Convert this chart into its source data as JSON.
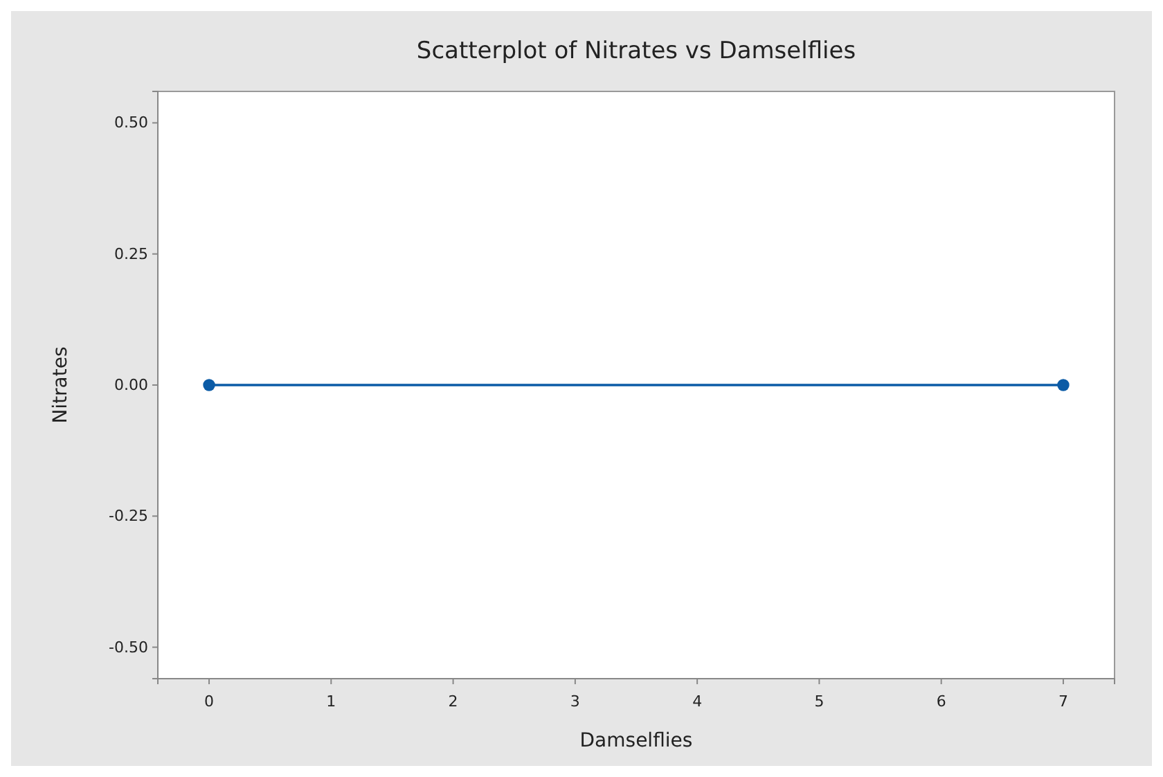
{
  "chart_data": {
    "type": "line",
    "title": "Scatterplot of Nitrates vs Damselflies",
    "xlabel": "Damselflies",
    "ylabel": "Nitrates",
    "x": [
      0,
      7
    ],
    "series": [
      {
        "color": "#0b5ba6",
        "values": [
          0,
          0
        ]
      }
    ],
    "xlim": [
      -0.42,
      7.42
    ],
    "xticks": [
      0,
      1,
      2,
      3,
      4,
      5,
      6,
      7
    ],
    "ylim": [
      -0.56,
      0.56
    ],
    "yticks": [
      {
        "value": 0.5,
        "label": "0.50"
      },
      {
        "value": 0.25,
        "label": "0.25"
      },
      {
        "value": 0,
        "label": "0.00"
      },
      {
        "value": -0.25,
        "label": "-0.25"
      },
      {
        "value": -0.5,
        "label": "-0.50"
      }
    ],
    "marker": "circle",
    "line_style": "solid",
    "grid": false
  }
}
